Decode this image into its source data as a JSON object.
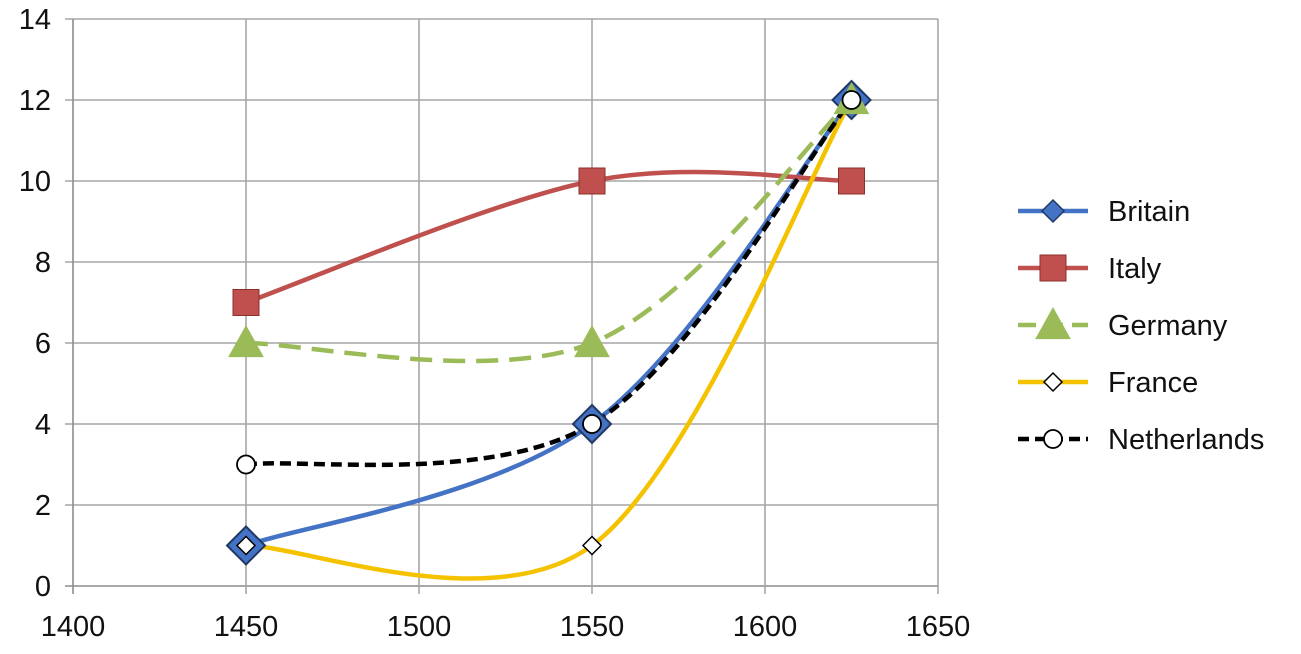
{
  "chart_data": {
    "type": "line",
    "title": "",
    "xlabel": "",
    "ylabel": "",
    "xlim": [
      1400,
      1650
    ],
    "ylim": [
      0,
      14
    ],
    "x_ticks": [
      1400,
      1450,
      1500,
      1550,
      1600,
      1650
    ],
    "y_ticks": [
      0,
      2,
      4,
      6,
      8,
      10,
      12,
      14
    ],
    "grid": true,
    "smooth": true,
    "legend_position": "right",
    "series": [
      {
        "name": "Britain",
        "x": [
          1450,
          1550,
          1625
        ],
        "values": [
          1,
          4,
          12
        ],
        "color": "#4472c4",
        "marker": "diamond-large",
        "dashed": false
      },
      {
        "name": "Italy",
        "x": [
          1450,
          1550,
          1625
        ],
        "values": [
          7,
          10,
          10
        ],
        "color": "#c0504d",
        "marker": "square",
        "dashed": false
      },
      {
        "name": "Germany",
        "x": [
          1450,
          1550,
          1625
        ],
        "values": [
          6,
          6,
          12
        ],
        "color": "#9bbb59",
        "marker": "triangle",
        "dashed": true
      },
      {
        "name": "France",
        "x": [
          1450,
          1550,
          1625
        ],
        "values": [
          1,
          1,
          12
        ],
        "color": "#f5c200",
        "marker": "diamond-white",
        "dashed": false
      },
      {
        "name": "Netherlands",
        "x": [
          1450,
          1550,
          1625
        ],
        "values": [
          3,
          4,
          12
        ],
        "color": "#000000",
        "marker": "circle-white",
        "dashed": true
      }
    ]
  }
}
